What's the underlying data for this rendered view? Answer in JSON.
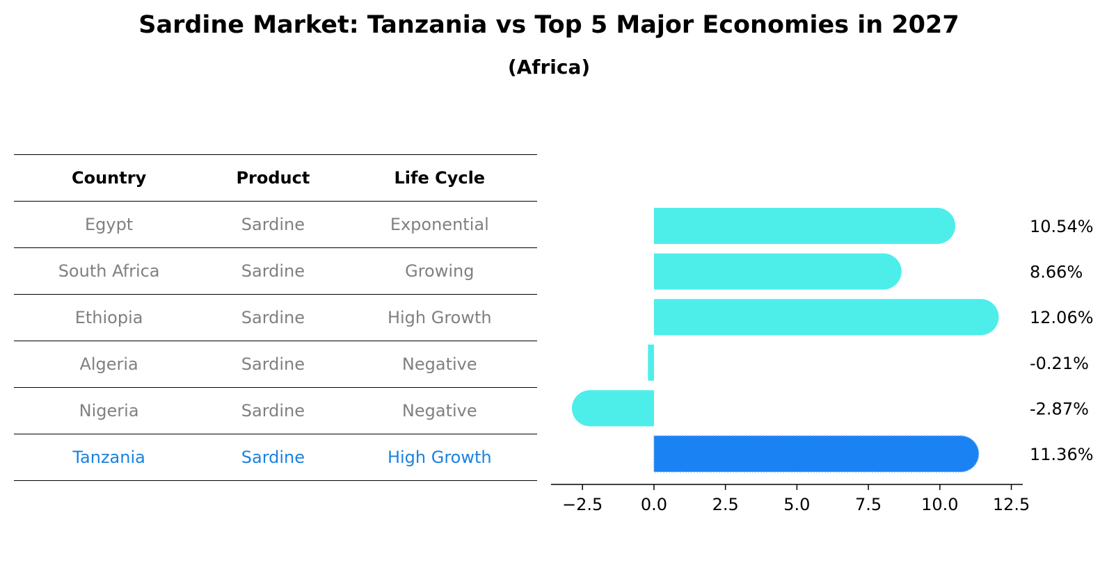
{
  "header": {
    "title": "Sardine Market: Tanzania vs Top 5 Major Economies in 2027",
    "subtitle": "(Africa)"
  },
  "table": {
    "columns": [
      "Country",
      "Product",
      "Life Cycle"
    ],
    "rows": [
      {
        "country": "Egypt",
        "product": "Sardine",
        "life_cycle": "Exponential"
      },
      {
        "country": "South Africa",
        "product": "Sardine",
        "life_cycle": "Growing"
      },
      {
        "country": "Ethiopia",
        "product": "Sardine",
        "life_cycle": "High Growth"
      },
      {
        "country": "Algeria",
        "product": "Sardine",
        "life_cycle": "Negative"
      },
      {
        "country": "Nigeria",
        "product": "Sardine",
        "life_cycle": "Negative"
      },
      {
        "country": "Tanzania",
        "product": "Sardine",
        "life_cycle": "High Growth"
      }
    ],
    "highlight_color": "#1a82e0",
    "text_color": "#808080"
  },
  "chart_data": {
    "type": "bar",
    "orientation": "horizontal",
    "categories": [
      "Egypt",
      "South Africa",
      "Ethiopia",
      "Algeria",
      "Nigeria",
      "Tanzania"
    ],
    "values": [
      10.54,
      8.66,
      12.06,
      -0.21,
      -2.87,
      11.36
    ],
    "value_labels": [
      "10.54%",
      "8.66%",
      "12.06%",
      "-0.21%",
      "-2.87%",
      "11.36%"
    ],
    "xlim": [
      -3.6,
      12.9
    ],
    "xticks": [
      -2.5,
      0.0,
      2.5,
      5.0,
      7.5,
      10.0,
      12.5
    ],
    "xtick_labels": [
      "−2.5",
      "0.0",
      "2.5",
      "5.0",
      "7.5",
      "10.0",
      "12.5"
    ],
    "highlight_index": 5,
    "bar_color": "#4deeea",
    "highlight_color": "#1a82f2",
    "xlabel": "",
    "ylabel": ""
  }
}
